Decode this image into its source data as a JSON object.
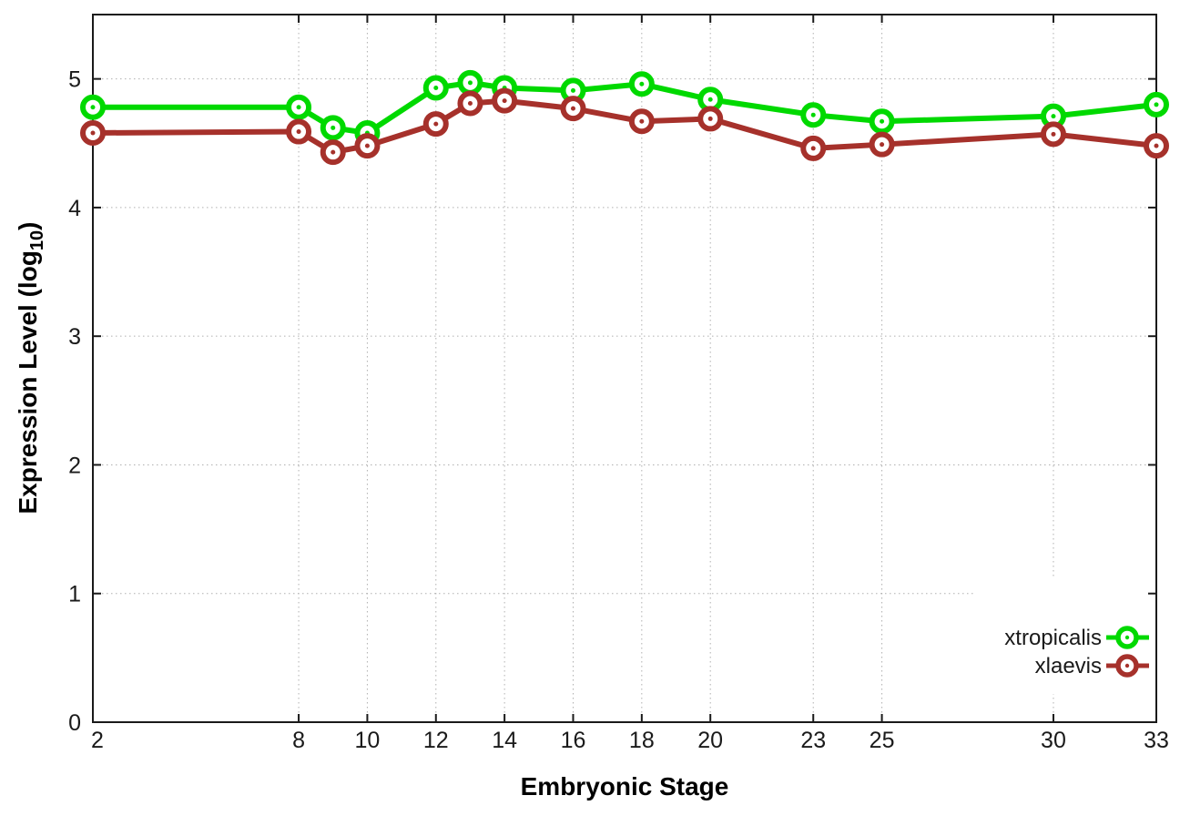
{
  "chart_data": {
    "type": "line",
    "title": "",
    "xlabel": "Embryonic Stage",
    "ylabel": "Expression Level (log10)",
    "ylabel_parts": {
      "main": "Expression Level (log",
      "sub": "10",
      "end": ")"
    },
    "x": [
      2,
      8,
      9,
      10,
      12,
      13,
      14,
      16,
      18,
      20,
      23,
      25,
      30,
      33
    ],
    "series": [
      {
        "name": "xtropicalis",
        "color": "#00d900",
        "values": [
          4.78,
          4.78,
          4.62,
          4.58,
          4.93,
          4.97,
          4.93,
          4.91,
          4.96,
          4.84,
          4.72,
          4.67,
          4.71,
          4.8
        ]
      },
      {
        "name": "xlaevis",
        "color": "#a6312b",
        "values": [
          4.58,
          4.59,
          4.43,
          4.48,
          4.65,
          4.81,
          4.83,
          4.77,
          4.67,
          4.69,
          4.46,
          4.49,
          4.57,
          4.48
        ]
      }
    ],
    "xticks": [
      2,
      8,
      10,
      12,
      14,
      16,
      18,
      20,
      23,
      25,
      30,
      33
    ],
    "yticks": [
      0,
      1,
      2,
      3,
      4,
      5
    ],
    "xlim": [
      2,
      33
    ],
    "ylim": [
      0,
      5.5
    ],
    "grid": true,
    "legend_position": "inside-bottom-right",
    "marker": "open-circle-with-center-dot"
  },
  "styles": {
    "background": "#ffffff",
    "grid_color": "#b0b0b0",
    "axis_color": "#1a1a1a",
    "tick_text_color": "#1a1a1a"
  }
}
